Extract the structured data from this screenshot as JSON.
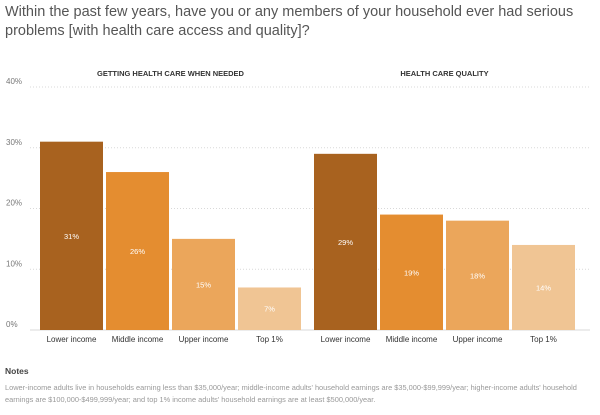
{
  "title": "Within the past few years, have you or any members of your household ever had serious problems [with health care access and quality]?",
  "notes": {
    "heading": "Notes",
    "text": "Lower-income adults live in households earning less than $35,000/year; middle-income adults' household earnings are $35,000-$99,999/year; higher-income adults' household earnings are $100,000-$499,999/year; and top 1% income adults' household earnings are at least $500,000/year."
  },
  "colors": [
    "#a8621f",
    "#e48d30",
    "#eba65b",
    "#f0c594"
  ],
  "chart_data": {
    "type": "bar",
    "ylim": [
      0,
      40
    ],
    "yticks": [
      0,
      10,
      20,
      30,
      40
    ],
    "ytick_labels": [
      "0%",
      "10%",
      "20%",
      "30%",
      "40%"
    ],
    "grid": true,
    "panels": [
      {
        "title": "GETTING HEALTH CARE WHEN NEEDED",
        "categories": [
          "Lower income",
          "Middle income",
          "Upper income",
          "Top 1%"
        ],
        "values": [
          31,
          26,
          15,
          7
        ],
        "labels": [
          "31%",
          "26%",
          "15%",
          "7%"
        ]
      },
      {
        "title": "HEALTH CARE QUALITY",
        "categories": [
          "Lower income",
          "Middle income",
          "Upper income",
          "Top 1%"
        ],
        "values": [
          29,
          19,
          18,
          14
        ],
        "labels": [
          "29%",
          "19%",
          "18%",
          "14%"
        ]
      }
    ]
  }
}
